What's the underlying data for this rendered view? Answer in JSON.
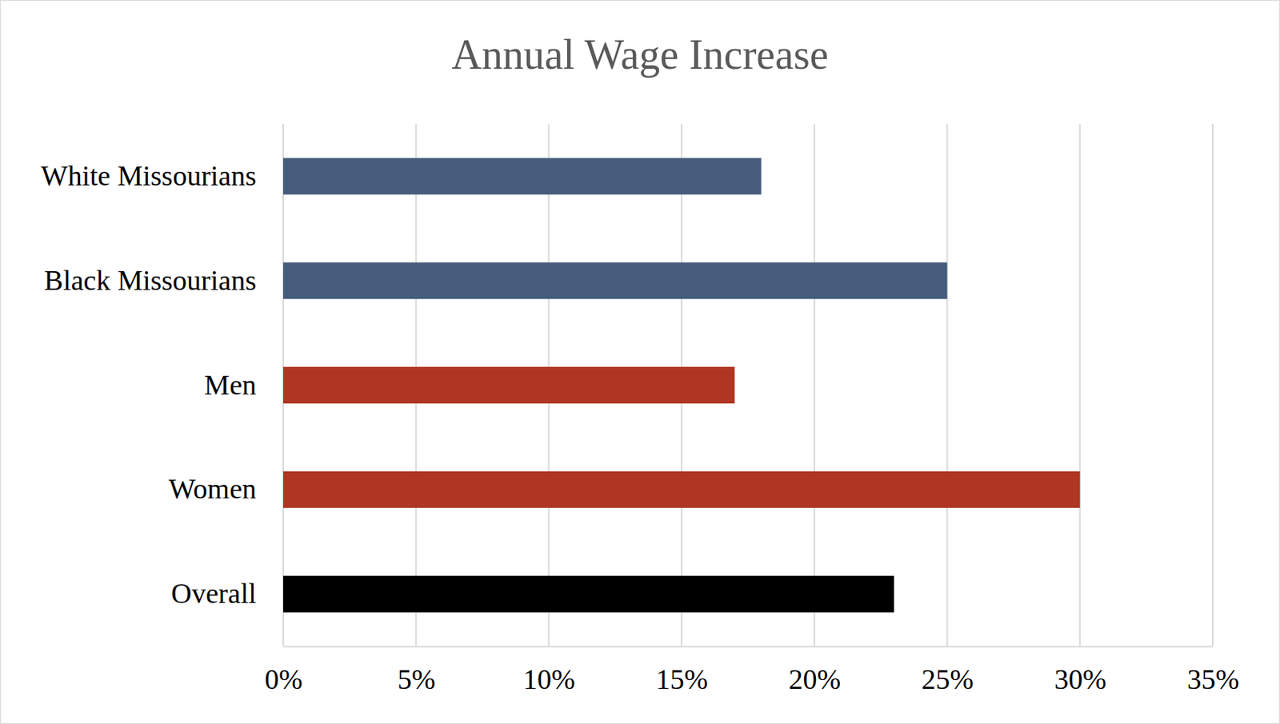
{
  "chart_data": {
    "type": "bar",
    "orientation": "horizontal",
    "title": "Annual Wage Increase",
    "categories": [
      "White Missourians",
      "Black Missourians",
      "Men",
      "Women",
      "Overall"
    ],
    "values": [
      18,
      25,
      17,
      30,
      23
    ],
    "colors": [
      "#455d7a",
      "#455d7a",
      "#b03522",
      "#b03522",
      "#000000"
    ],
    "xlim": [
      0,
      35
    ],
    "xticks": [
      {
        "value": 0,
        "label": "0%"
      },
      {
        "value": 5,
        "label": "5%"
      },
      {
        "value": 10,
        "label": "10%"
      },
      {
        "value": 15,
        "label": "15%"
      },
      {
        "value": 20,
        "label": "20%"
      },
      {
        "value": 25,
        "label": "25%"
      },
      {
        "value": 30,
        "label": "30%"
      },
      {
        "value": 35,
        "label": "35%"
      }
    ],
    "grid": true
  }
}
